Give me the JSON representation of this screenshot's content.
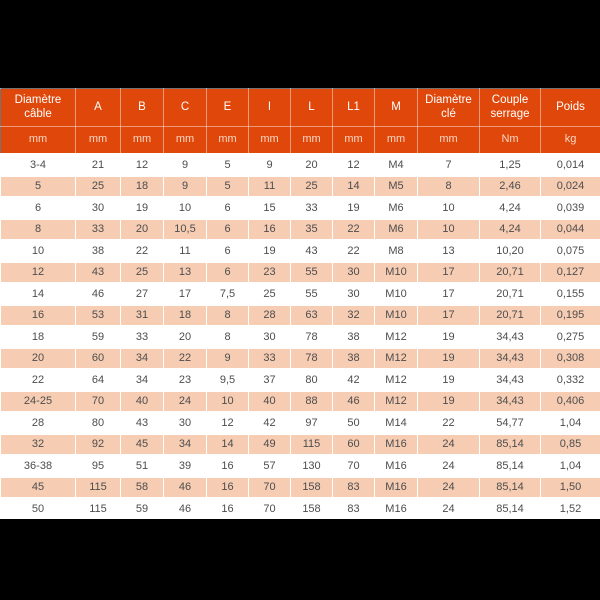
{
  "page": {
    "background_color": "#000000"
  },
  "table": {
    "accent_color": "#e0470a",
    "alt_row_color": "#f6ccb3",
    "row_color": "#ffffff",
    "data_text_color": "#4d4d4d",
    "header_text_color": "#ffffff",
    "columns": [
      {
        "label": "Diamètre câble",
        "unit": "mm"
      },
      {
        "label": "A",
        "unit": "mm"
      },
      {
        "label": "B",
        "unit": "mm"
      },
      {
        "label": "C",
        "unit": "mm"
      },
      {
        "label": "E",
        "unit": "mm"
      },
      {
        "label": "I",
        "unit": "mm"
      },
      {
        "label": "L",
        "unit": "mm"
      },
      {
        "label": "L1",
        "unit": "mm"
      },
      {
        "label": "M",
        "unit": "mm"
      },
      {
        "label": "Diamètre clé",
        "unit": "mm"
      },
      {
        "label": "Couple serrage",
        "unit": "Nm"
      },
      {
        "label": "Poids",
        "unit": "kg"
      }
    ],
    "rows": [
      [
        "3-4",
        "21",
        "12",
        "9",
        "5",
        "9",
        "20",
        "12",
        "M4",
        "7",
        "1,25",
        "0,014"
      ],
      [
        "5",
        "25",
        "18",
        "9",
        "5",
        "11",
        "25",
        "14",
        "M5",
        "8",
        "2,46",
        "0,024"
      ],
      [
        "6",
        "30",
        "19",
        "10",
        "6",
        "15",
        "33",
        "19",
        "M6",
        "10",
        "4,24",
        "0,039"
      ],
      [
        "8",
        "33",
        "20",
        "10,5",
        "6",
        "16",
        "35",
        "22",
        "M6",
        "10",
        "4,24",
        "0,044"
      ],
      [
        "10",
        "38",
        "22",
        "11",
        "6",
        "19",
        "43",
        "22",
        "M8",
        "13",
        "10,20",
        "0,075"
      ],
      [
        "12",
        "43",
        "25",
        "13",
        "6",
        "23",
        "55",
        "30",
        "M10",
        "17",
        "20,71",
        "0,127"
      ],
      [
        "14",
        "46",
        "27",
        "17",
        "7,5",
        "25",
        "55",
        "30",
        "M10",
        "17",
        "20,71",
        "0,155"
      ],
      [
        "16",
        "53",
        "31",
        "18",
        "8",
        "28",
        "63",
        "32",
        "M10",
        "17",
        "20,71",
        "0,195"
      ],
      [
        "18",
        "59",
        "33",
        "20",
        "8",
        "30",
        "78",
        "38",
        "M12",
        "19",
        "34,43",
        "0,275"
      ],
      [
        "20",
        "60",
        "34",
        "22",
        "9",
        "33",
        "78",
        "38",
        "M12",
        "19",
        "34,43",
        "0,308"
      ],
      [
        "22",
        "64",
        "34",
        "23",
        "9,5",
        "37",
        "80",
        "42",
        "M12",
        "19",
        "34,43",
        "0,332"
      ],
      [
        "24-25",
        "70",
        "40",
        "24",
        "10",
        "40",
        "88",
        "46",
        "M12",
        "19",
        "34,43",
        "0,406"
      ],
      [
        "28",
        "80",
        "43",
        "30",
        "12",
        "42",
        "97",
        "50",
        "M14",
        "22",
        "54,77",
        "1,04"
      ],
      [
        "32",
        "92",
        "45",
        "34",
        "14",
        "49",
        "115",
        "60",
        "M16",
        "24",
        "85,14",
        "0,85"
      ],
      [
        "36-38",
        "95",
        "51",
        "39",
        "16",
        "57",
        "130",
        "70",
        "M16",
        "24",
        "85,14",
        "1,04"
      ],
      [
        "45",
        "115",
        "58",
        "46",
        "16",
        "70",
        "158",
        "83",
        "M16",
        "24",
        "85,14",
        "1,50"
      ],
      [
        "50",
        "115",
        "59",
        "46",
        "16",
        "70",
        "158",
        "83",
        "M16",
        "24",
        "85,14",
        "1,52"
      ]
    ]
  }
}
